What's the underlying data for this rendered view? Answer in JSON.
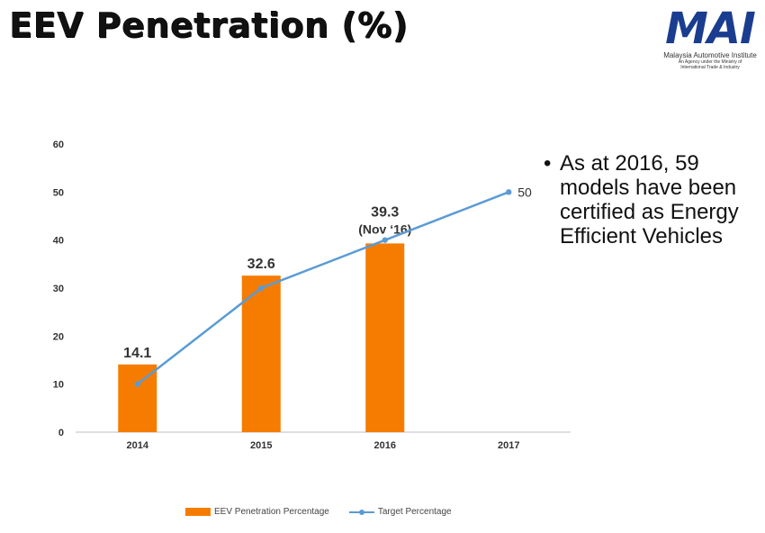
{
  "page": {
    "title": "EEV Penetration (%)"
  },
  "logo": {
    "mark": "MAI",
    "name": "Malaysia Automotive Institute",
    "sub1": "An Agency under the Ministry of",
    "sub2": "International Trade & Industry"
  },
  "bullet": {
    "text": "As at 2016, 59 models have been certified as Energy Efficient Vehicles"
  },
  "colors": {
    "bar": "#f57c00",
    "line": "#5b9bd5",
    "axis_text": "#333333"
  },
  "chart_data": {
    "type": "bar",
    "title": "EEV Penetration (%)",
    "xlabel": "",
    "ylabel": "",
    "ylim": [
      0,
      60
    ],
    "yticks": [
      0,
      10,
      20,
      30,
      40,
      50,
      60
    ],
    "grid": false,
    "legend_position": "bottom",
    "categories": [
      "2014",
      "2015",
      "2016",
      "2017"
    ],
    "series": [
      {
        "name": "EEV Penetration Percentage",
        "kind": "bar",
        "values": [
          14.1,
          32.6,
          39.3,
          null
        ],
        "labels": [
          "14.1",
          "32.6",
          "39.3",
          ""
        ]
      },
      {
        "name": "Target Percentage",
        "kind": "line",
        "values": [
          10,
          30,
          40,
          50
        ],
        "labels": [
          "",
          "",
          "",
          "50"
        ]
      }
    ],
    "annotations": [
      {
        "category": "2016",
        "text": "(Nov ‘16)"
      }
    ]
  }
}
